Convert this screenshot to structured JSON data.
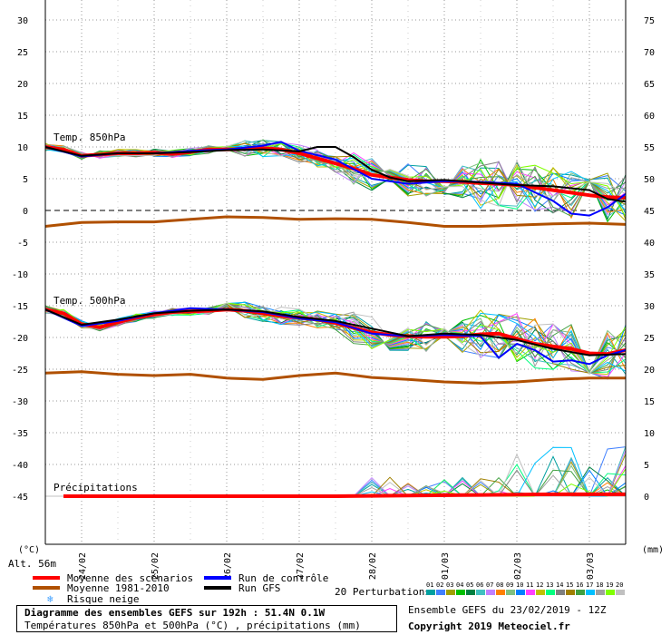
{
  "chart_data": {
    "type": "line",
    "title": "Diagramme des ensembles GEFS sur 192h : 51.4N 0.1W",
    "subtitle": "Températures 850hPa et 500hPa (°C) , précipitations (mm)",
    "run_info": "Ensemble GEFS du 23/02/2019 - 12Z",
    "copyright": "Copyright 2019 Meteociel.fr",
    "altitude": "Alt. 56m",
    "left_unit": "(°C)",
    "right_unit": "(mm)",
    "left_ylim": [
      -50,
      30
    ],
    "right_ylim": [
      0,
      75
    ],
    "y_left_ticks": [
      "30",
      "25",
      "20",
      "15",
      "10",
      "5",
      "0",
      "-5",
      "-10",
      "-15",
      "-20",
      "-25",
      "-30",
      "-35",
      "-40",
      "-45"
    ],
    "y_right_ticks": [
      "75",
      "70",
      "65",
      "60",
      "55",
      "50",
      "45",
      "40",
      "35",
      "30",
      "25",
      "20",
      "15",
      "10",
      "5",
      "0"
    ],
    "x_range_hours": [
      0,
      192
    ],
    "x_ticks": [
      {
        "label": "24/02",
        "hour": 12
      },
      {
        "label": "25/02",
        "hour": 36
      },
      {
        "label": "26/02",
        "hour": 60
      },
      {
        "label": "27/02",
        "hour": 84
      },
      {
        "label": "28/02",
        "hour": 108
      },
      {
        "label": "01/03",
        "hour": 132
      },
      {
        "label": "02/03",
        "hour": 156
      },
      {
        "label": "03/03",
        "hour": 180
      }
    ],
    "panel_labels": [
      "Temp. 850hPa",
      "Temp. 500hPa",
      "Précipitations"
    ],
    "perturbations_label": "20 Perturbations",
    "perturbation_ids": [
      "01",
      "02",
      "03",
      "04",
      "05",
      "06",
      "07",
      "08",
      "09",
      "10",
      "11",
      "12",
      "13",
      "14",
      "15",
      "16",
      "17",
      "18",
      "19",
      "20"
    ],
    "perturbation_colors": [
      "#00a0a0",
      "#4080ff",
      "#a0a000",
      "#00c000",
      "#008040",
      "#40c0c0",
      "#c080ff",
      "#ff8000",
      "#80c080",
      "#0080ff",
      "#ff40ff",
      "#c0c000",
      "#00ff80",
      "#808080",
      "#a08000",
      "#40a040",
      "#00c0ff",
      "#a0a0a0",
      "#80ff00",
      "#c0c0c0"
    ],
    "legend": [
      {
        "label": "Moyenne des scénarios",
        "color": "#ff0000"
      },
      {
        "label": "Moyenne 1981-2010",
        "color": "#b05000"
      },
      {
        "label": "Risque neige",
        "color": "#40a0ff"
      },
      {
        "label": "Run de contrôle",
        "color": "#0000ff"
      },
      {
        "label": "Run GFS",
        "color": "#000000"
      }
    ],
    "series": [
      {
        "name": "Moyenne des scénarios",
        "level": "850hPa",
        "color": "#ff0000",
        "x": [
          0,
          6,
          12,
          18,
          24,
          30,
          36,
          42,
          48,
          54,
          60,
          66,
          72,
          78,
          84,
          90,
          96,
          102,
          108,
          114,
          120,
          126,
          132,
          138,
          144,
          150,
          156,
          162,
          168,
          174,
          180,
          186,
          192
        ],
        "values": [
          10,
          9.6,
          8.6,
          8.8,
          9.0,
          9.0,
          9.1,
          8.9,
          9.2,
          9.6,
          9.6,
          9.7,
          9.8,
          9.6,
          9.0,
          8.2,
          7.4,
          6.6,
          5.6,
          5.2,
          4.8,
          4.6,
          4.6,
          4.5,
          4.3,
          4.2,
          4.0,
          3.6,
          3.2,
          2.8,
          2.4,
          2.1,
          2.0
        ]
      },
      {
        "name": "Moyenne 1981-2010",
        "level": "850hPa",
        "color": "#b05000",
        "x": [
          0,
          12,
          24,
          36,
          48,
          60,
          72,
          84,
          96,
          108,
          120,
          132,
          144,
          156,
          168,
          180,
          192
        ],
        "values": [
          -2.5,
          -1.9,
          -1.8,
          -1.8,
          -1.4,
          -1.0,
          -1.1,
          -1.4,
          -1.3,
          -1.4,
          -1.9,
          -2.5,
          -2.5,
          -2.3,
          -2.1,
          -2.0,
          -2.2
        ]
      },
      {
        "name": "Run de contrôle",
        "level": "850hPa",
        "color": "#0000ff",
        "x": [
          0,
          12,
          24,
          36,
          48,
          60,
          72,
          78,
          84,
          96,
          108,
          120,
          132,
          144,
          156,
          168,
          174,
          180,
          186,
          192
        ],
        "values": [
          10,
          8.5,
          9.0,
          9.0,
          9.4,
          9.6,
          10.2,
          10.8,
          9.4,
          8.0,
          5.0,
          4.2,
          4.6,
          4.5,
          4.2,
          1.5,
          -0.5,
          -0.8,
          0.5,
          2.6
        ]
      },
      {
        "name": "Run GFS",
        "level": "850hPa",
        "color": "#000000",
        "x": [
          0,
          12,
          24,
          36,
          48,
          60,
          72,
          84,
          90,
          96,
          102,
          108,
          114,
          120,
          132,
          144,
          156,
          168,
          180,
          186,
          192
        ],
        "values": [
          10,
          8.6,
          9.0,
          9.0,
          9.2,
          9.5,
          9.6,
          9.3,
          10.0,
          10.0,
          8.4,
          6.4,
          5.2,
          4.6,
          4.8,
          4.4,
          4.0,
          3.8,
          3.2,
          1.8,
          1.4
        ]
      },
      {
        "name": "Moyenne des scénarios",
        "level": "500hPa",
        "color": "#ff0000",
        "x": [
          0,
          6,
          12,
          18,
          24,
          30,
          36,
          42,
          48,
          54,
          60,
          66,
          72,
          78,
          84,
          90,
          96,
          102,
          108,
          114,
          120,
          126,
          132,
          138,
          144,
          150,
          156,
          162,
          168,
          174,
          180,
          186,
          192
        ],
        "values": [
          -15.6,
          -16.2,
          -17.9,
          -18.4,
          -17.6,
          -16.9,
          -16.4,
          -16.0,
          -15.9,
          -15.8,
          -15.6,
          -15.8,
          -16.2,
          -16.6,
          -16.9,
          -17.2,
          -17.7,
          -18.5,
          -19.2,
          -19.6,
          -19.8,
          -19.9,
          -19.9,
          -19.8,
          -19.5,
          -19.4,
          -20.2,
          -21.0,
          -21.4,
          -21.8,
          -22.5,
          -22.6,
          -22.0
        ]
      },
      {
        "name": "Moyenne 1981-2010",
        "level": "500hPa",
        "color": "#b05000",
        "x": [
          0,
          12,
          24,
          36,
          48,
          60,
          72,
          84,
          96,
          108,
          120,
          132,
          144,
          156,
          168,
          180,
          192
        ],
        "values": [
          -25.6,
          -25.4,
          -25.8,
          -26.0,
          -25.8,
          -26.4,
          -26.6,
          -26.0,
          -25.6,
          -26.3,
          -26.6,
          -27.0,
          -27.2,
          -27.0,
          -26.6,
          -26.4,
          -26.4
        ]
      },
      {
        "name": "Run de contrôle",
        "level": "500hPa",
        "color": "#0000ff",
        "x": [
          0,
          12,
          24,
          36,
          48,
          60,
          72,
          84,
          96,
          108,
          120,
          132,
          144,
          150,
          156,
          162,
          168,
          174,
          180,
          186,
          192
        ],
        "values": [
          -15.6,
          -18.2,
          -17.4,
          -16.2,
          -15.4,
          -15.6,
          -16.0,
          -17.0,
          -17.6,
          -19.4,
          -19.8,
          -19.6,
          -19.8,
          -23.2,
          -21.0,
          -22.0,
          -23.8,
          -23.6,
          -24.2,
          -22.8,
          -22.0
        ]
      },
      {
        "name": "Run GFS",
        "level": "500hPa",
        "color": "#000000",
        "x": [
          0,
          12,
          24,
          36,
          48,
          60,
          72,
          84,
          96,
          108,
          120,
          132,
          144,
          156,
          168,
          180,
          192
        ],
        "values": [
          -15.6,
          -18.0,
          -17.2,
          -16.2,
          -15.8,
          -15.6,
          -15.9,
          -16.8,
          -17.4,
          -18.6,
          -19.8,
          -19.4,
          -19.6,
          -20.4,
          -21.8,
          -22.8,
          -22.6
        ]
      },
      {
        "name": "Moyenne des scénarios",
        "level": "Précipitations",
        "color": "#ff0000",
        "x": [
          6,
          24,
          48,
          72,
          96,
          120,
          144,
          168,
          192
        ],
        "values": [
          0,
          0,
          0,
          0,
          0,
          0.1,
          0.2,
          0.3,
          0.3
        ]
      }
    ]
  }
}
